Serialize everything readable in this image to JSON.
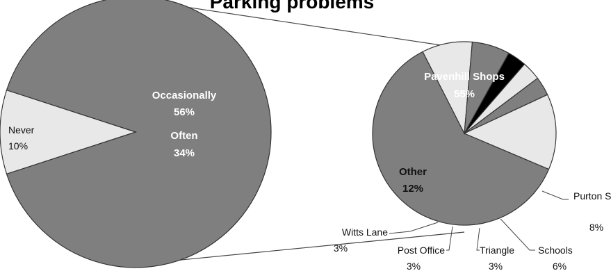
{
  "chart_data": [
    {
      "type": "pie",
      "title": "Parking problems",
      "slices": [
        {
          "label": "Occasionally",
          "value": 56,
          "display": "56%",
          "color": "#7f7f7f"
        },
        {
          "label": "Often",
          "value": 34,
          "display": "34%",
          "color": "#7f7f7f"
        },
        {
          "label": "Never",
          "value": 10,
          "display": "10%",
          "color": "#e8e8e8"
        }
      ]
    },
    {
      "type": "pie",
      "title": "",
      "slices": [
        {
          "label": "Pavenhill Shops",
          "value": 55,
          "display": "55%",
          "color": "#7f7f7f"
        },
        {
          "label": "Purton Surgery",
          "value": 8,
          "display": "8%",
          "color": "#e8e8e8"
        },
        {
          "label": "Schools",
          "value": 6,
          "display": "6%",
          "color": "#7f7f7f"
        },
        {
          "label": "Triangle",
          "value": 3,
          "display": "3%",
          "color": "#000000"
        },
        {
          "label": "Post Office",
          "value": 3,
          "display": "3%",
          "color": "#e8e8e8"
        },
        {
          "label": "Witts Lane",
          "value": 3,
          "display": "3%",
          "color": "#7f7f7f"
        },
        {
          "label": "Other",
          "value": 12,
          "display": "12%",
          "color": "#e8e8e8"
        }
      ]
    }
  ]
}
